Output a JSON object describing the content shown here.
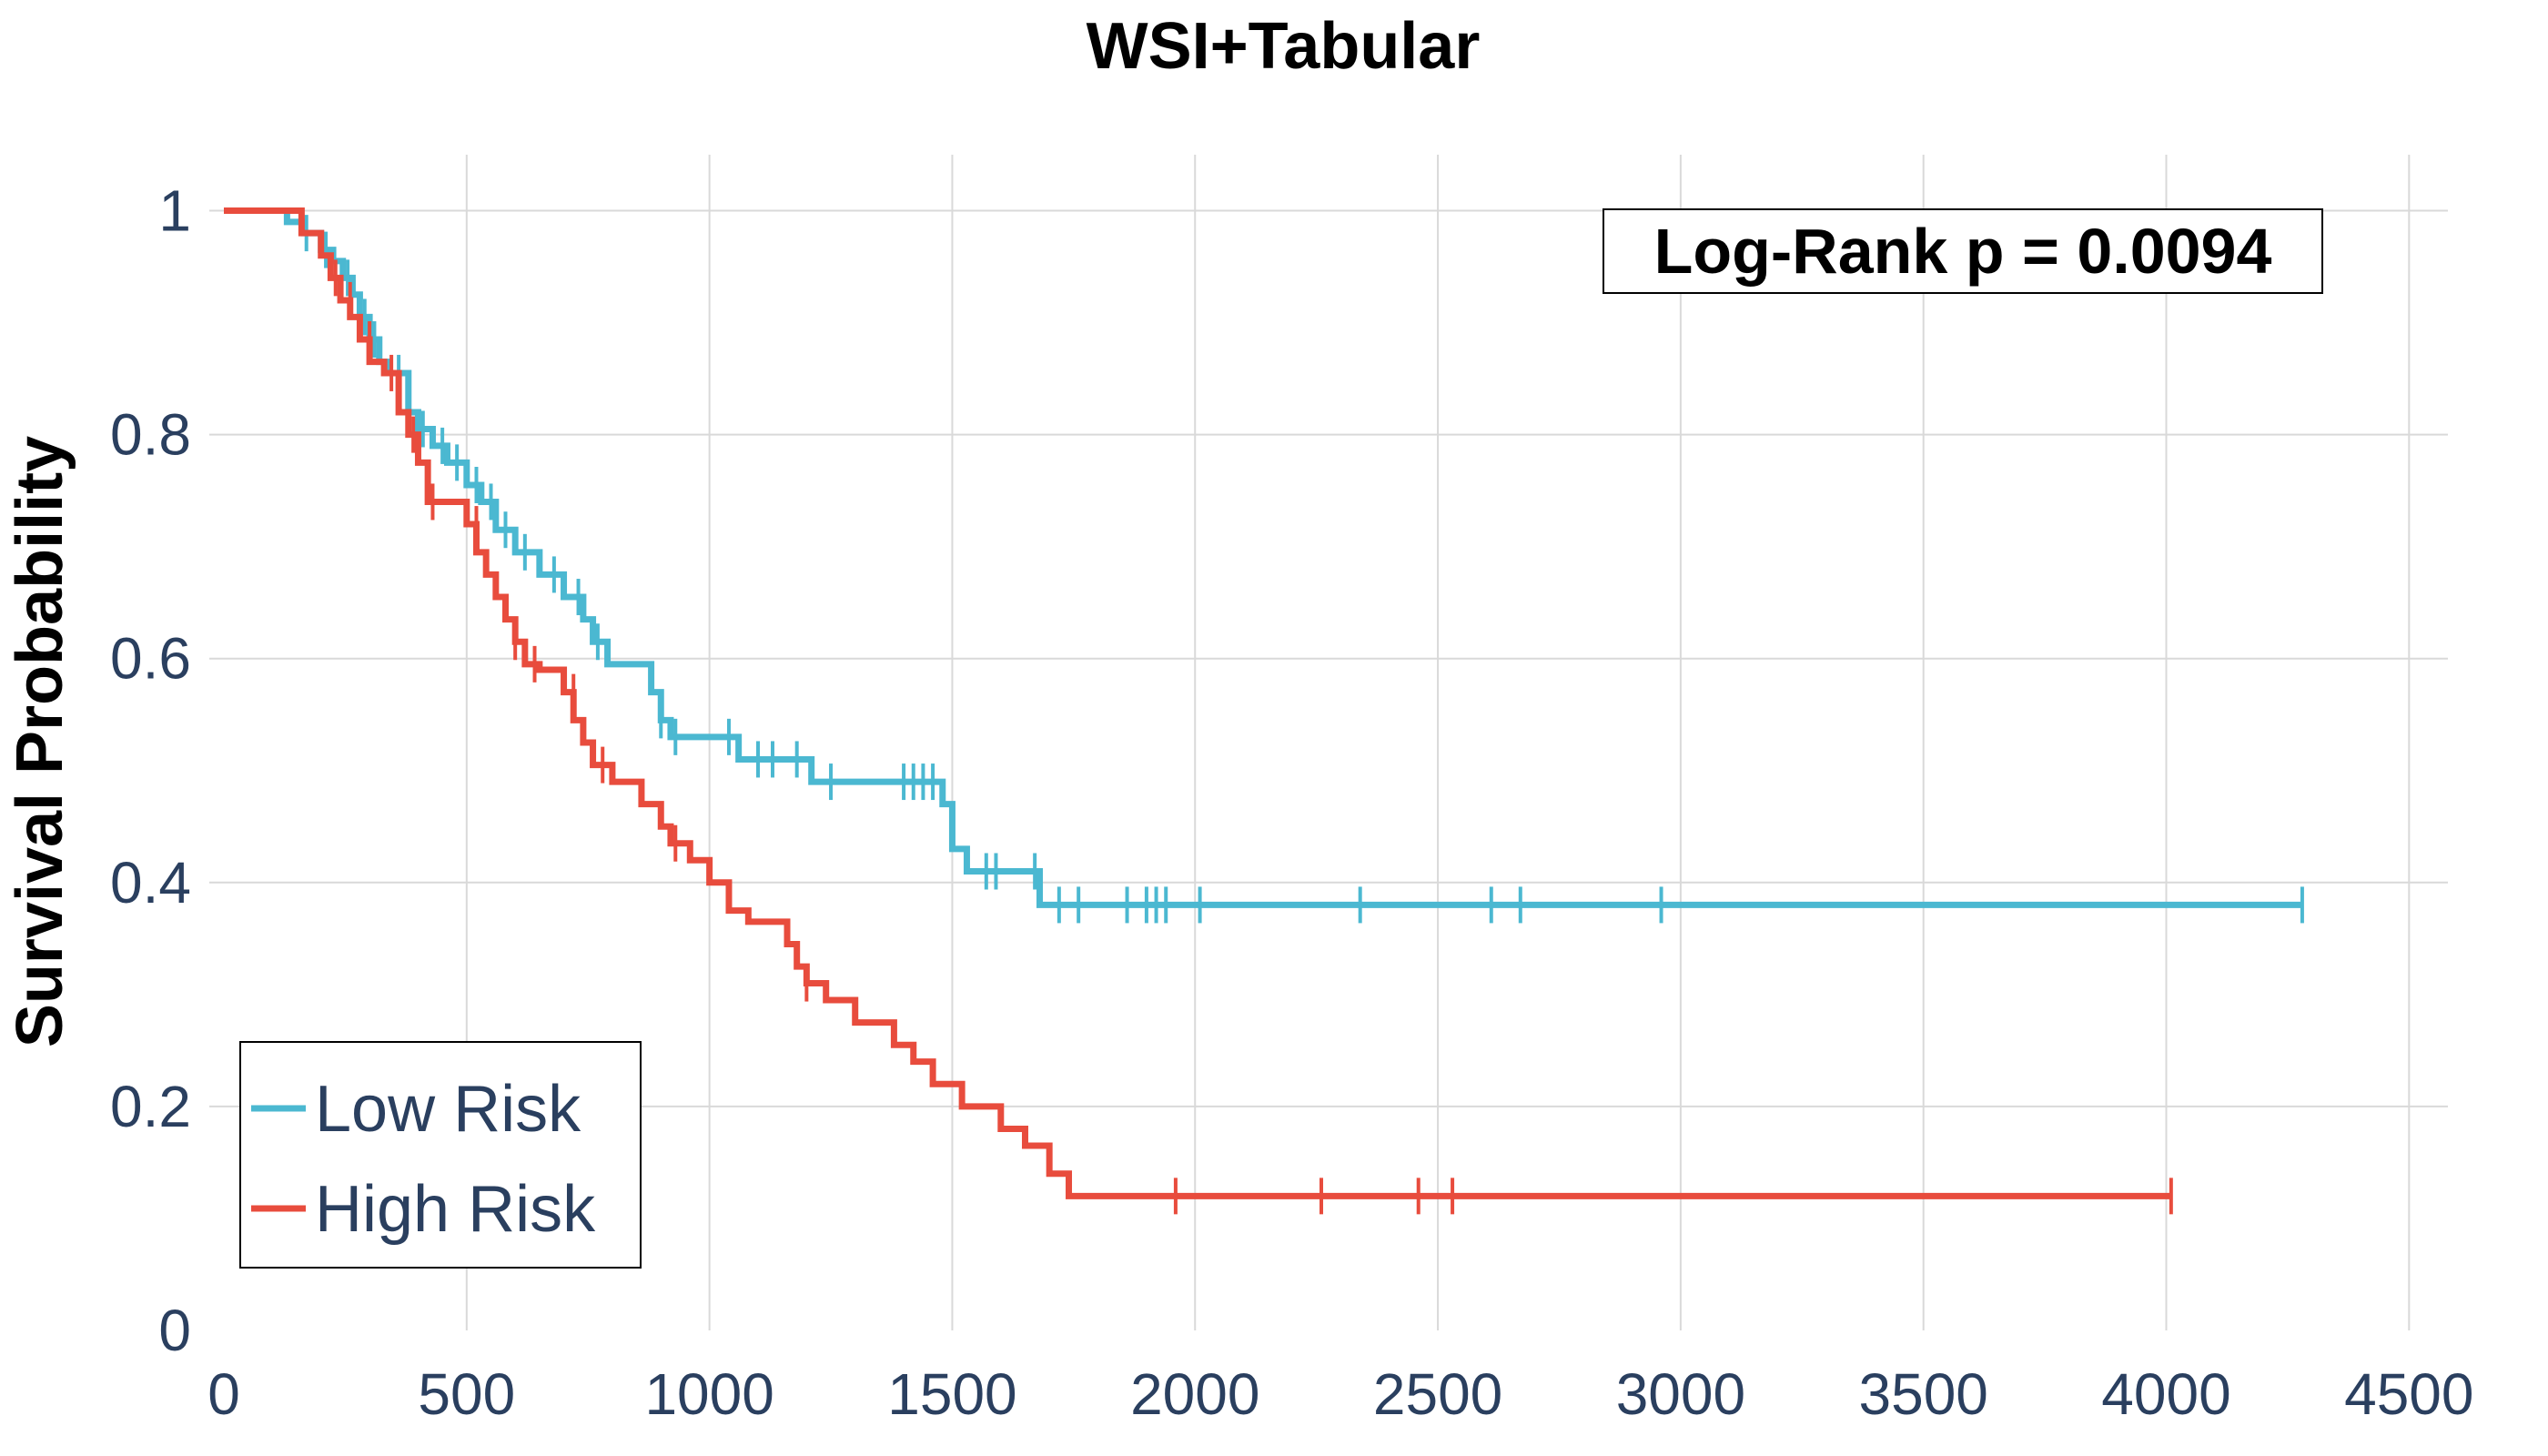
{
  "chart_data": {
    "type": "line",
    "title": "WSI+Tabular",
    "xlabel": "",
    "ylabel": "Survival Probability",
    "xlim": [
      -30,
      4580
    ],
    "ylim": [
      0,
      1.05
    ],
    "xticks": [
      0,
      500,
      1000,
      1500,
      2000,
      2500,
      3000,
      3500,
      4000,
      4500
    ],
    "yticks": [
      0,
      0.2,
      0.4,
      0.6,
      0.8,
      1
    ],
    "ytick_labels": [
      "0",
      "0.2",
      "0.4",
      "0.6",
      "0.8",
      "1"
    ],
    "grid": true,
    "legend_position": "bottom-left",
    "annotation": "Log-Rank p = 0.0094",
    "series": [
      {
        "name": "Low Risk",
        "color": "#4bb8d1",
        "steps": [
          [
            0,
            1.0
          ],
          [
            120,
            1.0
          ],
          [
            130,
            0.99
          ],
          [
            165,
            0.98
          ],
          [
            200,
            0.965
          ],
          [
            225,
            0.955
          ],
          [
            245,
            0.94
          ],
          [
            265,
            0.925
          ],
          [
            280,
            0.905
          ],
          [
            300,
            0.885
          ],
          [
            320,
            0.865
          ],
          [
            340,
            0.855
          ],
          [
            380,
            0.82
          ],
          [
            400,
            0.805
          ],
          [
            430,
            0.79
          ],
          [
            460,
            0.775
          ],
          [
            500,
            0.755
          ],
          [
            530,
            0.74
          ],
          [
            560,
            0.715
          ],
          [
            600,
            0.695
          ],
          [
            650,
            0.675
          ],
          [
            700,
            0.655
          ],
          [
            740,
            0.635
          ],
          [
            760,
            0.615
          ],
          [
            790,
            0.595
          ],
          [
            880,
            0.57
          ],
          [
            900,
            0.545
          ],
          [
            920,
            0.53
          ],
          [
            1000,
            0.53
          ],
          [
            1060,
            0.51
          ],
          [
            1150,
            0.51
          ],
          [
            1210,
            0.49
          ],
          [
            1440,
            0.49
          ],
          [
            1480,
            0.47
          ],
          [
            1500,
            0.43
          ],
          [
            1530,
            0.41
          ],
          [
            1650,
            0.41
          ],
          [
            1680,
            0.38
          ],
          [
            4280,
            0.38
          ]
        ],
        "censored": [
          [
            170,
            0.98
          ],
          [
            210,
            0.965
          ],
          [
            255,
            0.94
          ],
          [
            290,
            0.905
          ],
          [
            310,
            0.885
          ],
          [
            360,
            0.855
          ],
          [
            410,
            0.805
          ],
          [
            450,
            0.79
          ],
          [
            480,
            0.775
          ],
          [
            520,
            0.755
          ],
          [
            550,
            0.74
          ],
          [
            580,
            0.715
          ],
          [
            620,
            0.695
          ],
          [
            680,
            0.675
          ],
          [
            730,
            0.655
          ],
          [
            770,
            0.615
          ],
          [
            900,
            0.545
          ],
          [
            930,
            0.53
          ],
          [
            1040,
            0.53
          ],
          [
            1100,
            0.51
          ],
          [
            1130,
            0.51
          ],
          [
            1180,
            0.51
          ],
          [
            1250,
            0.49
          ],
          [
            1400,
            0.49
          ],
          [
            1420,
            0.49
          ],
          [
            1440,
            0.49
          ],
          [
            1460,
            0.49
          ],
          [
            1570,
            0.41
          ],
          [
            1590,
            0.41
          ],
          [
            1670,
            0.41
          ],
          [
            1720,
            0.38
          ],
          [
            1760,
            0.38
          ],
          [
            1860,
            0.38
          ],
          [
            1900,
            0.38
          ],
          [
            1920,
            0.38
          ],
          [
            1940,
            0.38
          ],
          [
            2010,
            0.38
          ],
          [
            2340,
            0.38
          ],
          [
            2610,
            0.38
          ],
          [
            2670,
            0.38
          ],
          [
            2960,
            0.38
          ],
          [
            4280,
            0.38
          ]
        ]
      },
      {
        "name": "High Risk",
        "color": "#e84c3d",
        "steps": [
          [
            0,
            1.0
          ],
          [
            140,
            1.0
          ],
          [
            160,
            0.98
          ],
          [
            200,
            0.96
          ],
          [
            220,
            0.94
          ],
          [
            240,
            0.92
          ],
          [
            260,
            0.905
          ],
          [
            280,
            0.885
          ],
          [
            300,
            0.865
          ],
          [
            330,
            0.855
          ],
          [
            360,
            0.82
          ],
          [
            380,
            0.8
          ],
          [
            400,
            0.775
          ],
          [
            420,
            0.74
          ],
          [
            500,
            0.72
          ],
          [
            520,
            0.695
          ],
          [
            540,
            0.675
          ],
          [
            560,
            0.655
          ],
          [
            580,
            0.635
          ],
          [
            600,
            0.615
          ],
          [
            620,
            0.595
          ],
          [
            650,
            0.59
          ],
          [
            700,
            0.57
          ],
          [
            720,
            0.545
          ],
          [
            740,
            0.525
          ],
          [
            760,
            0.505
          ],
          [
            800,
            0.49
          ],
          [
            860,
            0.47
          ],
          [
            900,
            0.45
          ],
          [
            920,
            0.435
          ],
          [
            960,
            0.42
          ],
          [
            1000,
            0.4
          ],
          [
            1040,
            0.375
          ],
          [
            1080,
            0.365
          ],
          [
            1160,
            0.345
          ],
          [
            1180,
            0.325
          ],
          [
            1200,
            0.31
          ],
          [
            1240,
            0.295
          ],
          [
            1300,
            0.275
          ],
          [
            1380,
            0.255
          ],
          [
            1420,
            0.24
          ],
          [
            1460,
            0.22
          ],
          [
            1520,
            0.2
          ],
          [
            1600,
            0.18
          ],
          [
            1650,
            0.165
          ],
          [
            1700,
            0.14
          ],
          [
            1740,
            0.12
          ],
          [
            2000,
            0.12
          ],
          [
            4010,
            0.12
          ]
        ],
        "censored": [
          [
            230,
            0.94
          ],
          [
            260,
            0.92
          ],
          [
            300,
            0.885
          ],
          [
            345,
            0.855
          ],
          [
            390,
            0.8
          ],
          [
            430,
            0.74
          ],
          [
            520,
            0.72
          ],
          [
            600,
            0.615
          ],
          [
            640,
            0.595
          ],
          [
            720,
            0.57
          ],
          [
            780,
            0.505
          ],
          [
            930,
            0.435
          ],
          [
            1200,
            0.31
          ],
          [
            1960,
            0.12
          ],
          [
            2260,
            0.12
          ],
          [
            2460,
            0.12
          ],
          [
            2530,
            0.12
          ],
          [
            4010,
            0.12
          ]
        ]
      }
    ]
  }
}
